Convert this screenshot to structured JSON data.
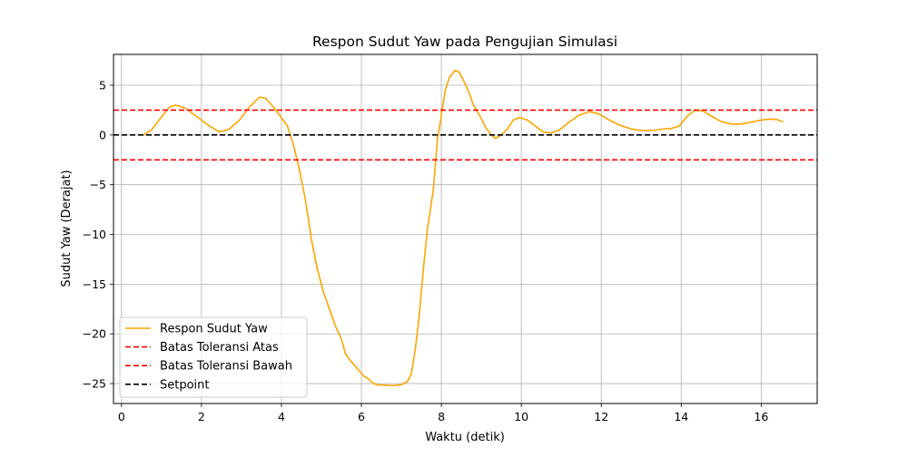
{
  "chart_data": {
    "type": "line",
    "title": "Respon Sudut Yaw pada Pengujian Simulasi",
    "xlabel": "Waktu (detik)",
    "ylabel": "Sudut Yaw (Derajat)",
    "xlim": [
      -0.2,
      17.4
    ],
    "ylim": [
      -27,
      8.1
    ],
    "grid": true,
    "legend_position": "lower-left",
    "x_ticks": [
      0,
      2,
      4,
      6,
      8,
      10,
      12,
      14,
      16
    ],
    "y_ticks": [
      5,
      0,
      -5,
      -10,
      -15,
      -20,
      -25
    ],
    "series": [
      {
        "name": "Respon Sudut Yaw",
        "color": "#ffa500",
        "style": "solid",
        "points": [
          [
            0.55,
            0.0
          ],
          [
            0.75,
            0.5
          ],
          [
            1.0,
            1.8
          ],
          [
            1.2,
            2.8
          ],
          [
            1.35,
            3.0
          ],
          [
            1.6,
            2.7
          ],
          [
            1.9,
            1.8
          ],
          [
            2.2,
            0.9
          ],
          [
            2.45,
            0.3
          ],
          [
            2.7,
            0.6
          ],
          [
            2.95,
            1.5
          ],
          [
            3.2,
            2.8
          ],
          [
            3.45,
            3.8
          ],
          [
            3.6,
            3.7
          ],
          [
            3.8,
            2.8
          ],
          [
            3.95,
            2.0
          ],
          [
            4.15,
            0.9
          ],
          [
            4.3,
            -1.0
          ],
          [
            4.45,
            -3.5
          ],
          [
            4.6,
            -6.5
          ],
          [
            4.75,
            -10.5
          ],
          [
            4.9,
            -13.5
          ],
          [
            5.05,
            -15.8
          ],
          [
            5.2,
            -17.5
          ],
          [
            5.35,
            -19.2
          ],
          [
            5.5,
            -20.5
          ],
          [
            5.6,
            -22.0
          ],
          [
            5.75,
            -22.8
          ],
          [
            5.9,
            -23.5
          ],
          [
            6.05,
            -24.2
          ],
          [
            6.2,
            -24.6
          ],
          [
            6.3,
            -25.0
          ],
          [
            6.45,
            -25.15
          ],
          [
            6.6,
            -25.15
          ],
          [
            6.8,
            -25.2
          ],
          [
            7.0,
            -25.1
          ],
          [
            7.15,
            -24.8
          ],
          [
            7.25,
            -24.0
          ],
          [
            7.35,
            -21.5
          ],
          [
            7.45,
            -18.0
          ],
          [
            7.55,
            -13.5
          ],
          [
            7.65,
            -9.5
          ],
          [
            7.8,
            -5.5
          ],
          [
            7.9,
            -0.5
          ],
          [
            8.0,
            2.0
          ],
          [
            8.1,
            4.5
          ],
          [
            8.2,
            5.8
          ],
          [
            8.35,
            6.5
          ],
          [
            8.45,
            6.3
          ],
          [
            8.55,
            5.5
          ],
          [
            8.7,
            4.2
          ],
          [
            8.8,
            3.0
          ],
          [
            8.95,
            2.0
          ],
          [
            9.1,
            0.8
          ],
          [
            9.25,
            0.0
          ],
          [
            9.35,
            -0.35
          ],
          [
            9.5,
            0.0
          ],
          [
            9.65,
            0.6
          ],
          [
            9.8,
            1.5
          ],
          [
            9.95,
            1.75
          ],
          [
            10.15,
            1.5
          ],
          [
            10.35,
            0.9
          ],
          [
            10.55,
            0.3
          ],
          [
            10.75,
            0.2
          ],
          [
            10.95,
            0.5
          ],
          [
            11.2,
            1.3
          ],
          [
            11.45,
            2.0
          ],
          [
            11.7,
            2.35
          ],
          [
            11.95,
            2.1
          ],
          [
            12.2,
            1.5
          ],
          [
            12.45,
            1.0
          ],
          [
            12.75,
            0.6
          ],
          [
            13.0,
            0.45
          ],
          [
            13.3,
            0.45
          ],
          [
            13.55,
            0.6
          ],
          [
            13.75,
            0.65
          ],
          [
            13.95,
            0.9
          ],
          [
            14.15,
            1.9
          ],
          [
            14.35,
            2.5
          ],
          [
            14.55,
            2.4
          ],
          [
            14.75,
            1.9
          ],
          [
            15.0,
            1.35
          ],
          [
            15.25,
            1.1
          ],
          [
            15.5,
            1.1
          ],
          [
            15.75,
            1.3
          ],
          [
            16.0,
            1.5
          ],
          [
            16.2,
            1.6
          ],
          [
            16.4,
            1.55
          ],
          [
            16.55,
            1.3
          ]
        ]
      },
      {
        "name": "Batas Toleransi Atas",
        "color": "#ff0000",
        "style": "dashed",
        "constant": 2.5
      },
      {
        "name": "Batas Toleransi Bawah",
        "color": "#ff0000",
        "style": "dashed",
        "constant": -2.5
      },
      {
        "name": "Setpoint",
        "color": "#000000",
        "style": "dashed",
        "constant": 0
      }
    ]
  }
}
